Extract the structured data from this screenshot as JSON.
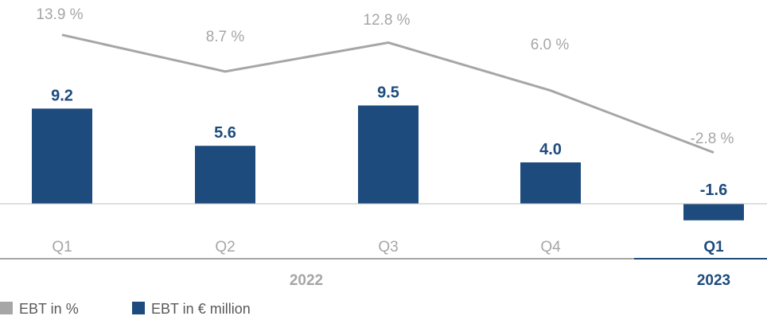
{
  "chart_data": {
    "type": "bar",
    "categories": [
      "Q1",
      "Q2",
      "Q3",
      "Q4",
      "Q1"
    ],
    "series": [
      {
        "name": "EBT in € million",
        "type": "bar",
        "values": [
          9.2,
          5.6,
          9.5,
          4.0,
          -1.6
        ],
        "labels": [
          "9.2",
          "5.6",
          "9.5",
          "4.0",
          "-1.6"
        ],
        "color": "#1e4b7d"
      },
      {
        "name": "EBT in %",
        "type": "line",
        "values": [
          13.9,
          8.7,
          12.8,
          6.0,
          -2.8
        ],
        "labels": [
          "13.9 %",
          "8.7 %",
          "12.8 %",
          "6.0 %",
          "-2.8 %"
        ],
        "color": "#a6a6a6"
      }
    ],
    "year_groups": [
      {
        "label": "2022",
        "span": [
          0,
          3
        ],
        "color": "#a6a6a6"
      },
      {
        "label": "2023",
        "span": [
          4,
          4
        ],
        "color": "#1e4b7d"
      }
    ],
    "legend": [
      {
        "label": "EBT in %",
        "color": "#a6a6a6"
      },
      {
        "label": "EBT in € million",
        "color": "#1e4b7d"
      }
    ],
    "legend_position": "bottom-left",
    "grid": false,
    "colors": {
      "bar": "#1e4b7d",
      "line": "#a6a6a6",
      "tick_past": "#a6a6a6",
      "tick_current": "#1e4b7d"
    }
  }
}
